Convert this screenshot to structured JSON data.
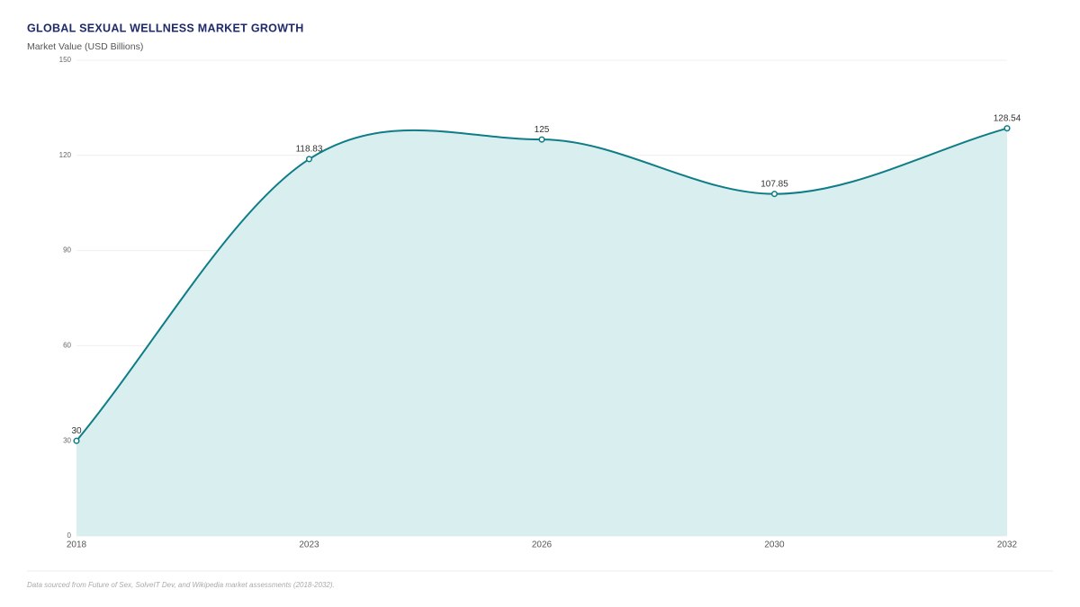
{
  "chart_data": {
    "type": "area",
    "title": "GLOBAL SEXUAL WELLNESS MARKET GROWTH",
    "y_label": "Market Value (USD Billions)",
    "categories": [
      "2018",
      "2023",
      "2026",
      "2030",
      "2032"
    ],
    "values": [
      30,
      118.83,
      125,
      107.85,
      128.54
    ],
    "color": "#0f7d87",
    "fill": "#d9eeee",
    "ylim": [
      0,
      150
    ],
    "yticks": [
      0,
      30,
      60,
      90,
      120,
      150
    ],
    "grid": true,
    "footer": "Data sourced from Future of Sex, SolveIT Dev, and Wikipedia market assessments (2018-2032)."
  }
}
